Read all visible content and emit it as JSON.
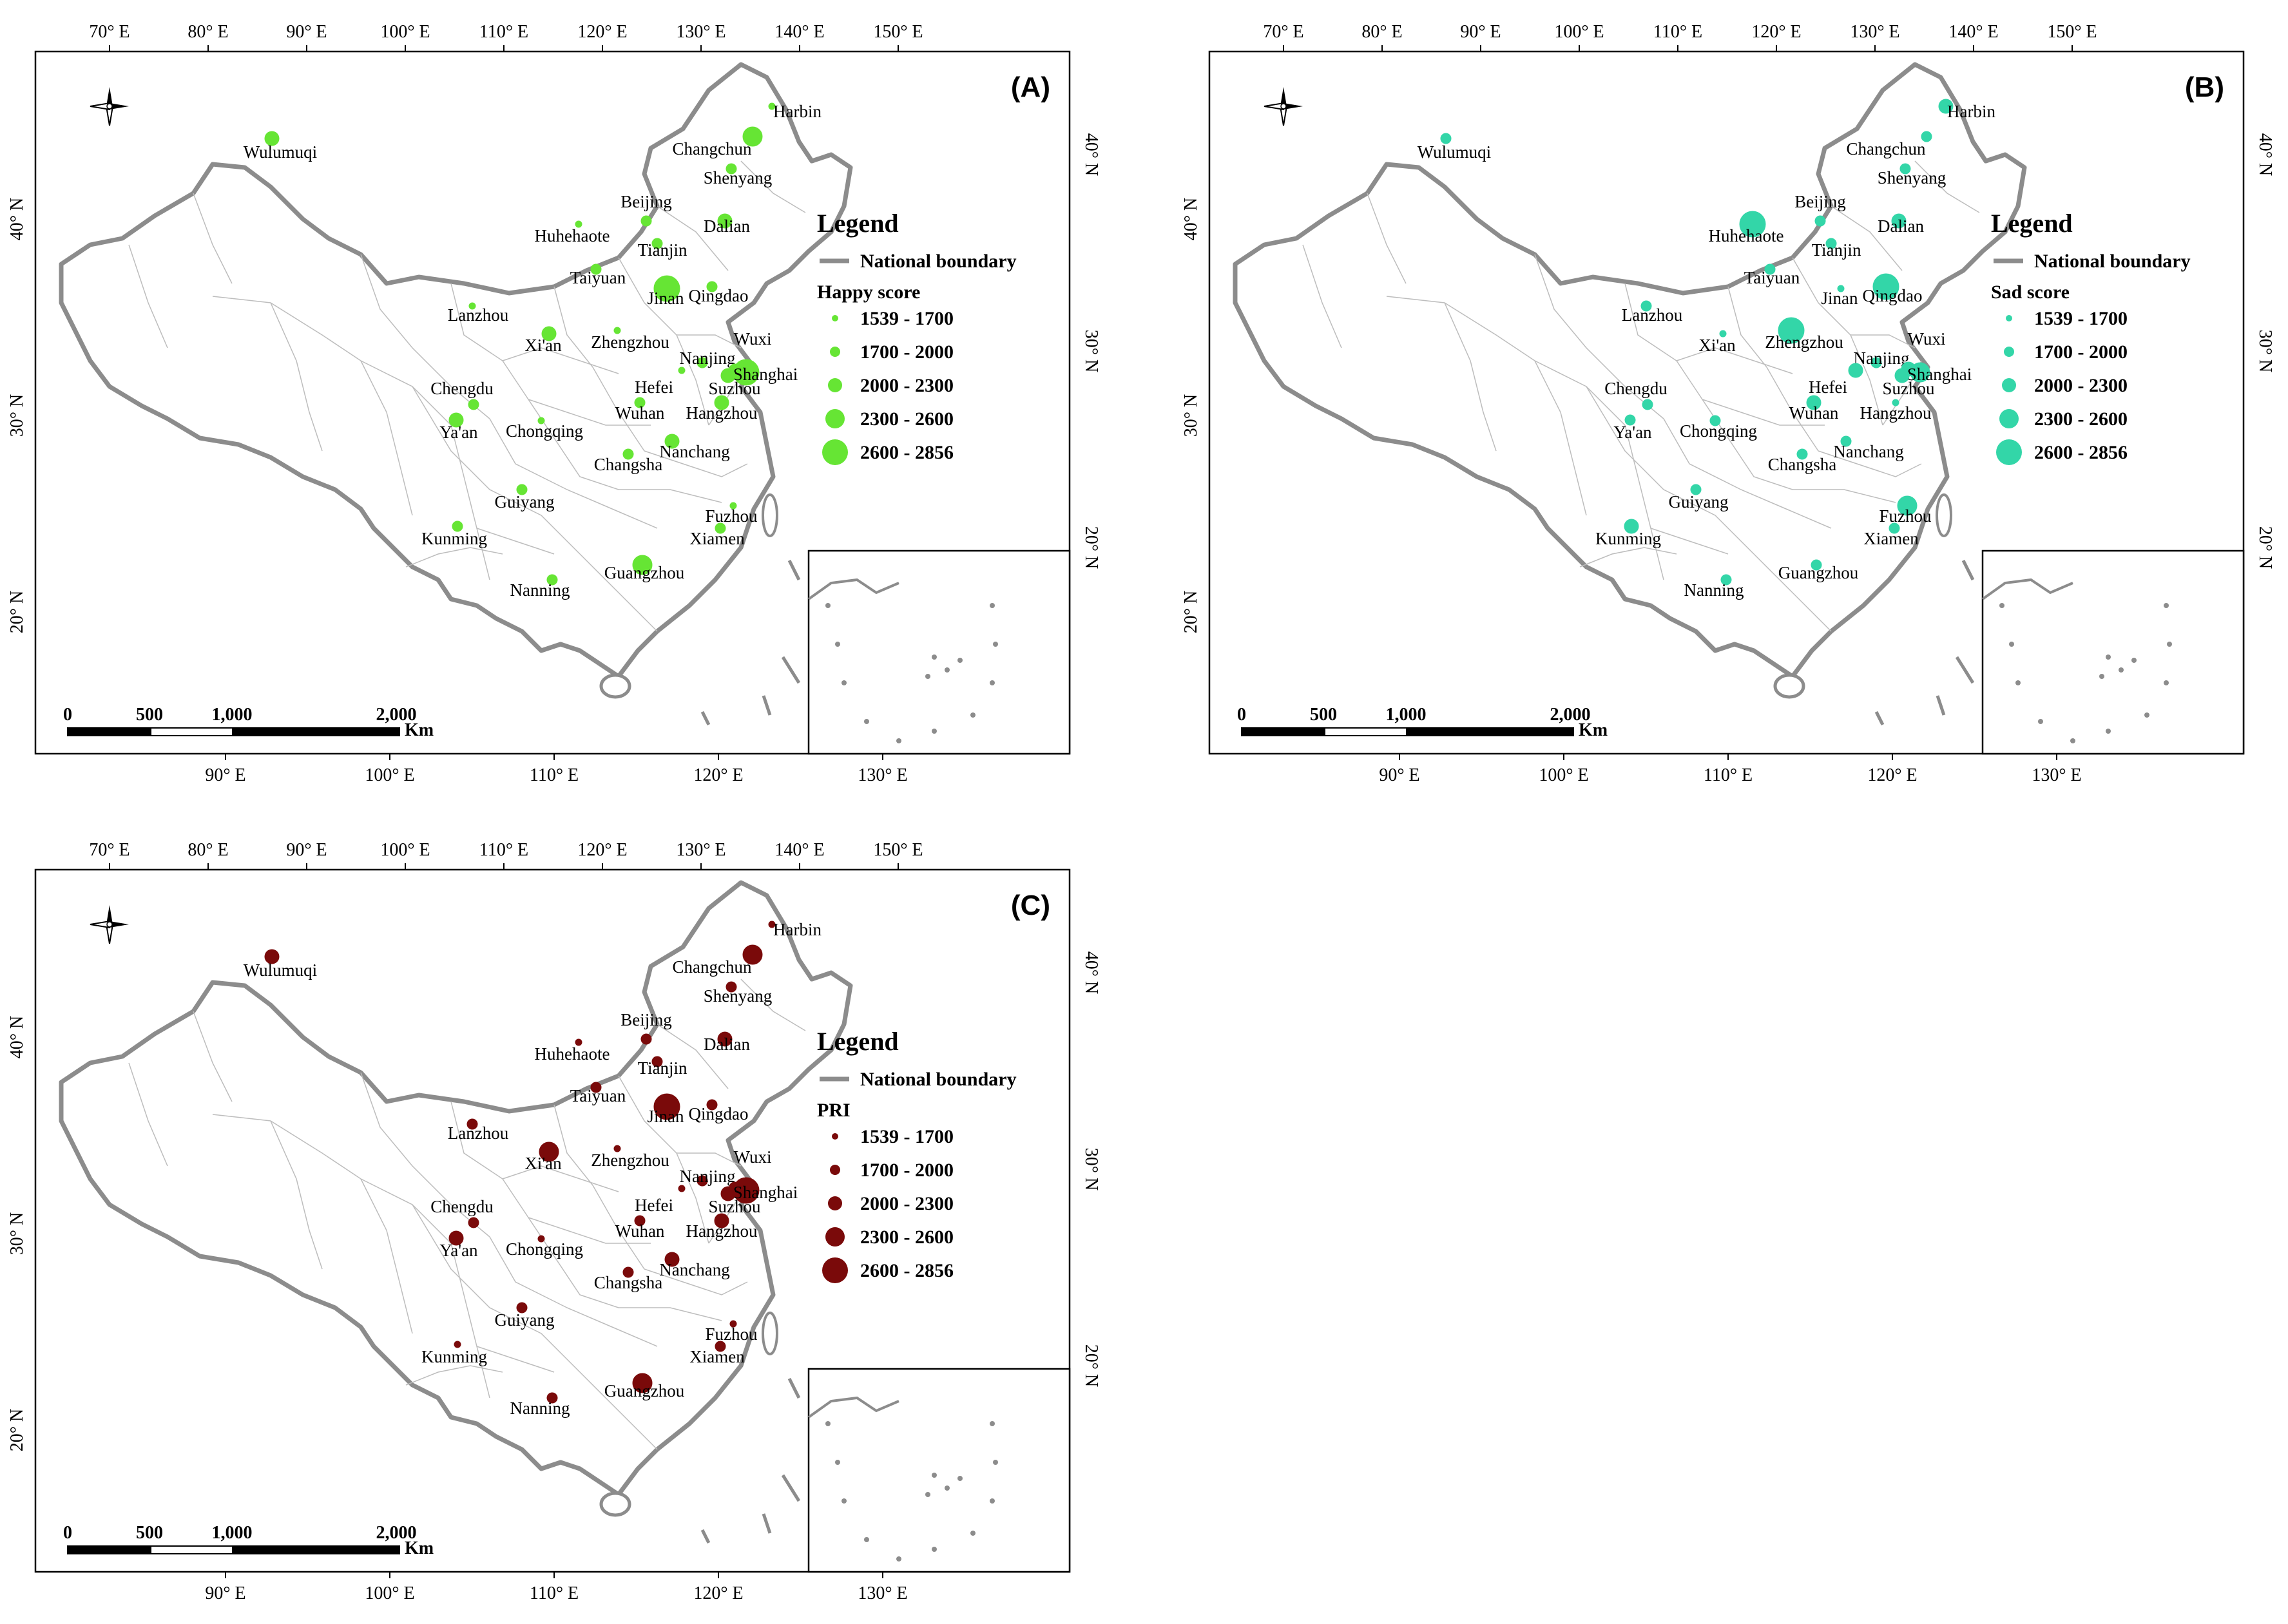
{
  "colors": {
    "happy": "#66e534",
    "sad": "#33d6a8",
    "pri": "#7a0a0a",
    "boundary": "#8c8c8c",
    "province": "#bdbdbd"
  },
  "icons": {
    "compass": "north-arrow-compass-icon"
  },
  "scale_bar": {
    "ticks": [
      "0",
      "500",
      "1,000",
      "2,000"
    ],
    "unit": "Km"
  },
  "axes": {
    "top_lon": [
      "70° E",
      "80° E",
      "90° E",
      "100° E",
      "110° E",
      "120° E",
      "130° E",
      "140° E",
      "150° E"
    ],
    "bottom_lon": [
      "90° E",
      "100° E",
      "110° E",
      "120° E",
      "130° E"
    ],
    "left_lat": [
      "40° N",
      "30° N",
      "20° N"
    ],
    "right_lat": [
      "40° N",
      "30° N",
      "20° N"
    ]
  },
  "legend_classes": [
    "1539 - 1700",
    "1700 - 2000",
    "2000 - 2300",
    "2300 - 2600",
    "2600 - 2856"
  ],
  "cities": [
    "Harbin",
    "Changchun",
    "Shenyang",
    "Dalian",
    "Beijing",
    "Tianjin",
    "Huhehaote",
    "Taiyuan",
    "Jinan",
    "Qingdao",
    "Wulumuqi",
    "Lanzhou",
    "Xi'an",
    "Zhengzhou",
    "Nanjing",
    "Wuxi",
    "Shanghai",
    "Suzhou",
    "Hefei",
    "Hangzhou",
    "Wuhan",
    "Chengdu",
    "Ya'an",
    "Chongqing",
    "Changsha",
    "Nanchang",
    "Guiyang",
    "Kunming",
    "Fuzhou",
    "Xiamen",
    "Nanning",
    "Guangzhou"
  ],
  "panels": [
    {
      "id": "A",
      "letter": "(A)",
      "legend_title": "Legend",
      "boundary_label": "National boundary",
      "score_label": "Happy score",
      "color_key": "happy",
      "classes": {
        "Harbin": 0,
        "Changchun": 3,
        "Shenyang": 1,
        "Dalian": 2,
        "Beijing": 1,
        "Tianjin": 1,
        "Huhehaote": 0,
        "Taiyuan": 1,
        "Jinan": 4,
        "Qingdao": 1,
        "Wulumuqi": 2,
        "Lanzhou": 0,
        "Xi'an": 2,
        "Zhengzhou": 0,
        "Nanjing": 1,
        "Wuxi": 1,
        "Shanghai": 4,
        "Suzhou": 2,
        "Hefei": 0,
        "Hangzhou": 2,
        "Wuhan": 1,
        "Chengdu": 1,
        "Ya'an": 2,
        "Chongqing": 0,
        "Changsha": 1,
        "Nanchang": 2,
        "Guiyang": 1,
        "Kunming": 1,
        "Fuzhou": 0,
        "Xiamen": 1,
        "Nanning": 1,
        "Guangzhou": 3
      }
    },
    {
      "id": "B",
      "letter": "(B)",
      "legend_title": "Legend",
      "boundary_label": "National boundary",
      "score_label": "Sad score",
      "color_key": "sad",
      "classes": {
        "Harbin": 2,
        "Changchun": 1,
        "Shenyang": 1,
        "Dalian": 2,
        "Beijing": 1,
        "Tianjin": 1,
        "Huhehaote": 4,
        "Taiyuan": 1,
        "Jinan": 0,
        "Qingdao": 4,
        "Wulumuqi": 1,
        "Lanzhou": 1,
        "Xi'an": 0,
        "Zhengzhou": 4,
        "Nanjing": 1,
        "Wuxi": 2,
        "Shanghai": 3,
        "Suzhou": 2,
        "Hefei": 2,
        "Hangzhou": 0,
        "Wuhan": 2,
        "Chengdu": 1,
        "Ya'an": 1,
        "Chongqing": 1,
        "Changsha": 1,
        "Nanchang": 1,
        "Guiyang": 1,
        "Kunming": 2,
        "Fuzhou": 3,
        "Xiamen": 1,
        "Nanning": 1,
        "Guangzhou": 1
      }
    },
    {
      "id": "C",
      "letter": "(C)",
      "legend_title": "Legend",
      "boundary_label": "National boundary",
      "score_label": "PRI",
      "color_key": "pri",
      "classes": {
        "Harbin": 0,
        "Changchun": 3,
        "Shenyang": 1,
        "Dalian": 2,
        "Beijing": 1,
        "Tianjin": 1,
        "Huhehaote": 0,
        "Taiyuan": 1,
        "Jinan": 4,
        "Qingdao": 1,
        "Wulumuqi": 2,
        "Lanzhou": 1,
        "Xi'an": 3,
        "Zhengzhou": 0,
        "Nanjing": 1,
        "Wuxi": 1,
        "Shanghai": 4,
        "Suzhou": 2,
        "Hefei": 0,
        "Hangzhou": 2,
        "Wuhan": 1,
        "Chengdu": 1,
        "Ya'an": 2,
        "Chongqing": 0,
        "Changsha": 1,
        "Nanchang": 2,
        "Guiyang": 1,
        "Kunming": 0,
        "Fuzhou": 0,
        "Xiamen": 1,
        "Nanning": 1,
        "Guangzhou": 3
      }
    }
  ]
}
